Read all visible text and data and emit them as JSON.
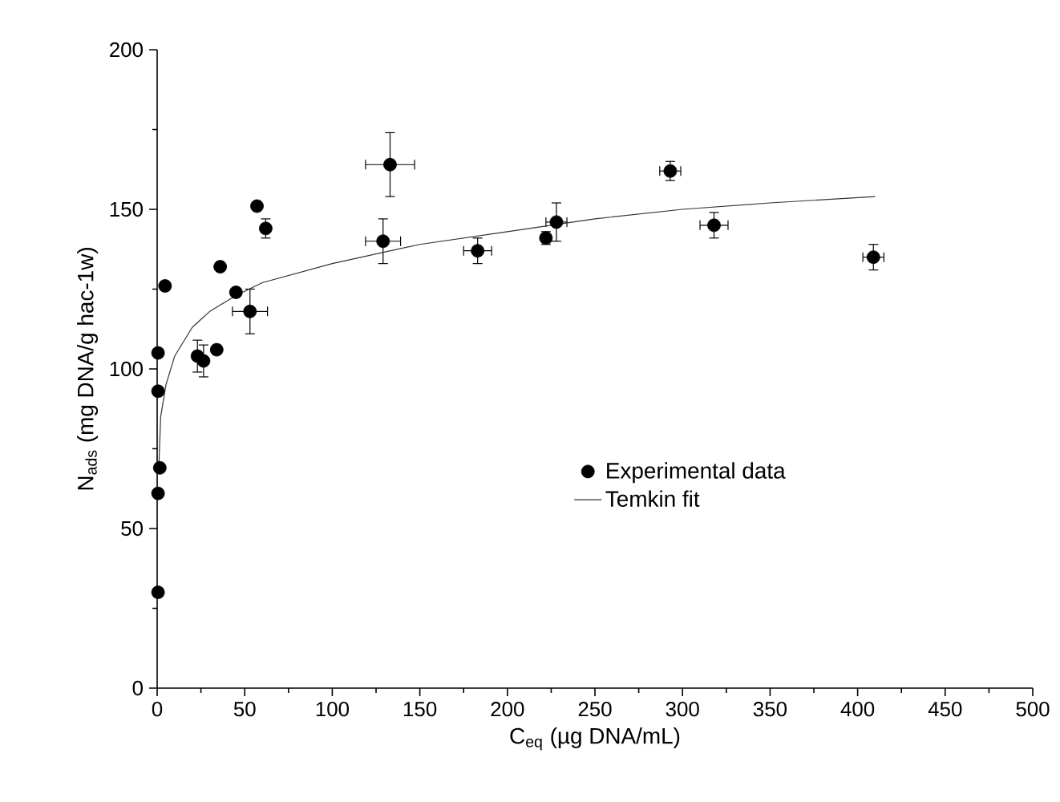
{
  "chart_data": {
    "type": "scatter",
    "xlabel": "C$_{eq}$ (µg DNA/mL)",
    "ylabel": "N$_{ads}$ (mg DNA/g hac-1w)",
    "xlim": [
      0,
      500
    ],
    "ylim": [
      0,
      200
    ],
    "xticks": [
      0,
      50,
      100,
      150,
      200,
      250,
      300,
      350,
      400,
      450,
      500
    ],
    "yticks": [
      0,
      50,
      100,
      150,
      200
    ],
    "legend": "right",
    "grid": false,
    "series": [
      {
        "name": "Experimental data",
        "marker": "circle",
        "color": "#000000",
        "x": [
          0.5,
          0.5,
          1.5,
          0.5,
          0.5,
          4.5,
          23,
          26.5,
          34,
          36,
          45,
          53,
          57,
          62,
          129,
          133,
          183,
          222,
          228,
          293,
          318,
          409
        ],
        "values": [
          30,
          61,
          69,
          93,
          105,
          126,
          104,
          102.5,
          106,
          132,
          124,
          118,
          151,
          144,
          140,
          164,
          137,
          141,
          146,
          162,
          145,
          135
        ],
        "errors": [
          null,
          null,
          null,
          null,
          null,
          null,
          5,
          5,
          null,
          null,
          null,
          7,
          null,
          3,
          7,
          10,
          4,
          2,
          6,
          3,
          4,
          4
        ],
        "xerrors": [
          null,
          null,
          null,
          null,
          null,
          null,
          null,
          null,
          null,
          null,
          null,
          10,
          null,
          null,
          10,
          14,
          8,
          null,
          6,
          6,
          8,
          6
        ]
      },
      {
        "name": "Temkin fit",
        "type": "line",
        "marker": "none",
        "line_style": "solid",
        "color": "#333333",
        "x": [
          1,
          2,
          5,
          10,
          20,
          30,
          45,
          60,
          100,
          150,
          200,
          250,
          300,
          350,
          410
        ],
        "values": [
          70,
          85,
          95,
          104,
          113,
          118,
          123,
          127,
          133,
          139,
          143,
          147,
          150,
          152,
          154
        ]
      }
    ]
  }
}
